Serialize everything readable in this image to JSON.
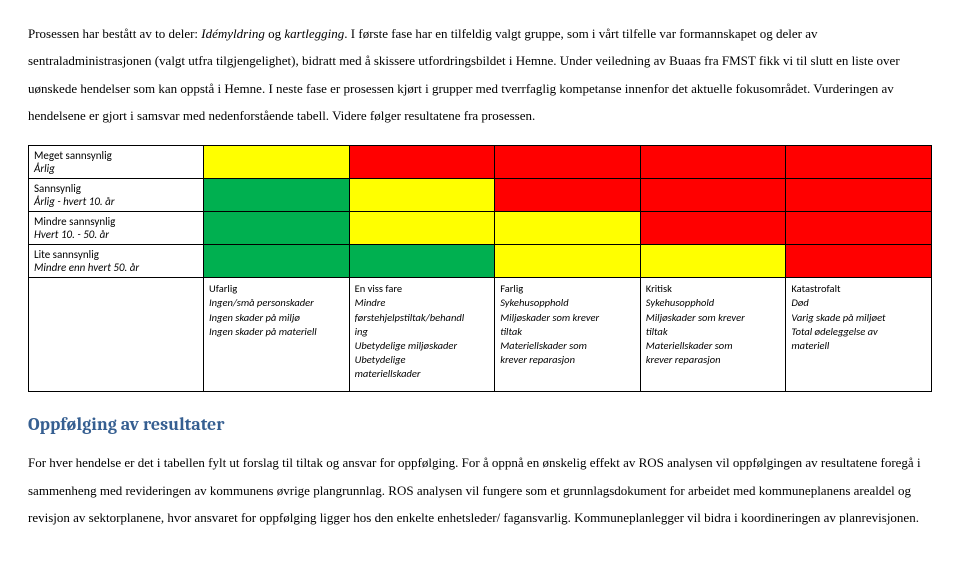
{
  "intro_html": "Prosessen har bestått av to deler: <span class=\"italic\">Idémyldring</span> og <span class=\"italic\">kartlegging</span>. I første fase har en tilfeldig valgt gruppe, som i vårt tilfelle var formannskapet og deler av sentraladministrasjonen (valgt utfra tilgjengelighet), bidratt med å skissere utfordringsbildet i Hemne. Under veiledning av Buaas fra FMST fikk vi til slutt en liste over uønskede hendelser som kan oppstå i Hemne. I neste fase er prosessen kjørt i grupper med tverrfaglig kompetanse innenfor det aktuelle fokusområdet. Vurderingen av hendelsene er gjort i samsvar med nedenforstående tabell. Videre følger resultatene fra prosessen.",
  "rows": [
    {
      "label": "Meget sannsynlig",
      "sub": "Årlig",
      "colors": [
        "yellow",
        "red",
        "red",
        "red",
        "red"
      ]
    },
    {
      "label": "Sannsynlig",
      "sub": "Årlig - hvert 10. år",
      "colors": [
        "green",
        "yellow",
        "red",
        "red",
        "red"
      ]
    },
    {
      "label": "Mindre sannsynlig",
      "sub": "Hvert 10. - 50. år",
      "colors": [
        "green",
        "yellow",
        "yellow",
        "red",
        "red"
      ]
    },
    {
      "label": "Lite sannsynlig",
      "sub": "Mindre enn hvert 50. år",
      "colors": [
        "green",
        "green",
        "yellow",
        "yellow",
        "red"
      ]
    }
  ],
  "legend": [
    {
      "head": "Ufarlig",
      "lines": [
        "Ingen/små personskader",
        "Ingen skader på miljø",
        "Ingen skader på materiell"
      ]
    },
    {
      "head": "En viss fare",
      "lines": [
        "Mindre",
        "førstehjelpstiltak/behandl",
        "ing",
        "Ubetydelige miljøskader",
        "Ubetydelige",
        "materiellskader"
      ]
    },
    {
      "head": "Farlig",
      "lines": [
        "Sykehusopphold",
        "Miljøskader som krever",
        "tiltak",
        "Materiellskader som",
        "krever reparasjon"
      ]
    },
    {
      "head": "Kritisk",
      "lines": [
        "Sykehusopphold",
        "Miljøskader som krever",
        "tiltak",
        "Materiellskader som",
        "krever reparasjon"
      ]
    },
    {
      "head": "Katastrofalt",
      "lines": [
        "Død",
        "Varig skade på miljøet",
        "Total ødeleggelse av",
        "materiell"
      ]
    }
  ],
  "colmap": {
    "red": "#ff0000",
    "yellow": "#ffff00",
    "green": "#00b050"
  },
  "h2": "Oppfølging av resultater",
  "para2": "For hver hendelse er det i tabellen fylt ut forslag til tiltak og ansvar for oppfølging. For å oppnå en ønskelig effekt av ROS analysen vil oppfølgingen av resultatene foregå i sammenheng med revideringen av kommunens øvrige plangrunnlag. ROS analysen vil fungere som et grunnlagsdokument for arbeidet med kommuneplanens arealdel og revisjon av sektorplanene, hvor ansvaret for oppfølging ligger hos den enkelte enhetsleder/ fagansvarlig. Kommuneplanlegger vil bidra i koordineringen av planrevisjonen."
}
